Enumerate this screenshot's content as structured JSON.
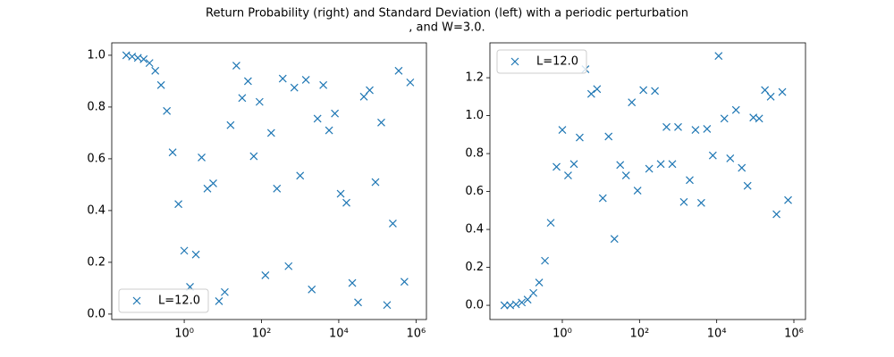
{
  "title": "Return Probability (right) and Standard Deviation (left) with a periodic perturbation",
  "subtitle": ", and W=3.0.",
  "chart_data": [
    {
      "type": "scatter",
      "xscale": "log",
      "marker": "x",
      "legend": "lower left",
      "x": [
        0.0316,
        0.0447,
        0.0631,
        0.0891,
        0.126,
        0.178,
        0.251,
        0.355,
        0.501,
        0.708,
        1,
        1.41,
        2.0,
        2.82,
        3.98,
        5.62,
        7.94,
        11.2,
        15.8,
        22.4,
        31.6,
        44.7,
        63.1,
        89.1,
        126,
        178,
        251,
        355,
        501,
        708,
        1000,
        1410,
        2000,
        2820,
        3980,
        5620,
        7940,
        11200,
        15800,
        22400,
        31600,
        44700,
        63100,
        89100,
        126000,
        178000,
        251000,
        355000,
        501000,
        708000
      ],
      "series": [
        {
          "name": "L=12.0",
          "color": "#1f77b4",
          "values": [
            1.0,
            0.995,
            0.99,
            0.985,
            0.97,
            0.94,
            0.885,
            0.785,
            0.625,
            0.425,
            0.245,
            0.105,
            0.23,
            0.605,
            0.485,
            0.505,
            0.05,
            0.085,
            0.73,
            0.96,
            0.835,
            0.9,
            0.61,
            0.82,
            0.15,
            0.7,
            0.485,
            0.91,
            0.185,
            0.875,
            0.535,
            0.905,
            0.095,
            0.755,
            0.885,
            0.71,
            0.775,
            0.465,
            0.43,
            0.12,
            0.045,
            0.84,
            0.865,
            0.51,
            0.74,
            0.035,
            0.35,
            0.94,
            0.125,
            0.895
          ]
        }
      ],
      "xlim": [
        0.0133,
        1860000
      ],
      "ylim": [
        -0.021,
        1.048
      ],
      "xticks": [
        {
          "value": 1,
          "label": "10⁰"
        },
        {
          "value": 100,
          "label": "10²"
        },
        {
          "value": 10000,
          "label": "10⁴"
        },
        {
          "value": 1000000,
          "label": "10⁶"
        }
      ],
      "yticks": [
        {
          "value": 0,
          "label": "0.0"
        },
        {
          "value": 0.2,
          "label": "0.2"
        },
        {
          "value": 0.4,
          "label": "0.4"
        },
        {
          "value": 0.6,
          "label": "0.6"
        },
        {
          "value": 0.8,
          "label": "0.8"
        },
        {
          "value": 1,
          "label": "1.0"
        }
      ]
    },
    {
      "type": "scatter",
      "xscale": "log",
      "marker": "x",
      "legend": "upper left",
      "x": [
        0.0316,
        0.0447,
        0.0631,
        0.0891,
        0.126,
        0.178,
        0.251,
        0.355,
        0.501,
        0.708,
        1,
        1.41,
        2.0,
        2.82,
        3.98,
        5.62,
        7.94,
        11.2,
        15.8,
        22.4,
        31.6,
        44.7,
        63.1,
        89.1,
        126,
        178,
        251,
        355,
        501,
        708,
        1000,
        1410,
        2000,
        2820,
        3980,
        5620,
        7940,
        11200,
        15800,
        22400,
        31600,
        44700,
        63100,
        89100,
        126000,
        178000,
        251000,
        355000,
        501000,
        708000
      ],
      "series": [
        {
          "name": "L=12.0",
          "color": "#1f77b4",
          "values": [
            0,
            0,
            0.005,
            0.015,
            0.03,
            0.065,
            0.12,
            0.235,
            0.435,
            0.73,
            0.925,
            0.685,
            0.745,
            0.885,
            1.245,
            1.115,
            1.14,
            0.565,
            0.89,
            0.35,
            0.74,
            0.685,
            1.07,
            0.605,
            1.135,
            0.72,
            1.13,
            0.745,
            0.94,
            0.745,
            0.94,
            0.545,
            0.66,
            0.925,
            0.54,
            0.93,
            0.79,
            1.315,
            0.985,
            0.775,
            1.03,
            0.725,
            0.63,
            0.99,
            0.985,
            1.135,
            1.1,
            0.48,
            1.125,
            0.555
          ]
        }
      ],
      "xlim": [
        0.0133,
        2000000
      ],
      "ylim": [
        -0.075,
        1.384
      ],
      "xticks": [
        {
          "value": 1,
          "label": "10⁰"
        },
        {
          "value": 100,
          "label": "10²"
        },
        {
          "value": 10000,
          "label": "10⁴"
        },
        {
          "value": 1000000,
          "label": "10⁶"
        }
      ],
      "yticks": [
        {
          "value": 0,
          "label": "0.0"
        },
        {
          "value": 0.2,
          "label": "0.2"
        },
        {
          "value": 0.4,
          "label": "0.4"
        },
        {
          "value": 0.6,
          "label": "0.6"
        },
        {
          "value": 0.8,
          "label": "0.8"
        },
        {
          "value": 1,
          "label": "1.0"
        },
        {
          "value": 1.2,
          "label": "1.2"
        }
      ]
    }
  ]
}
